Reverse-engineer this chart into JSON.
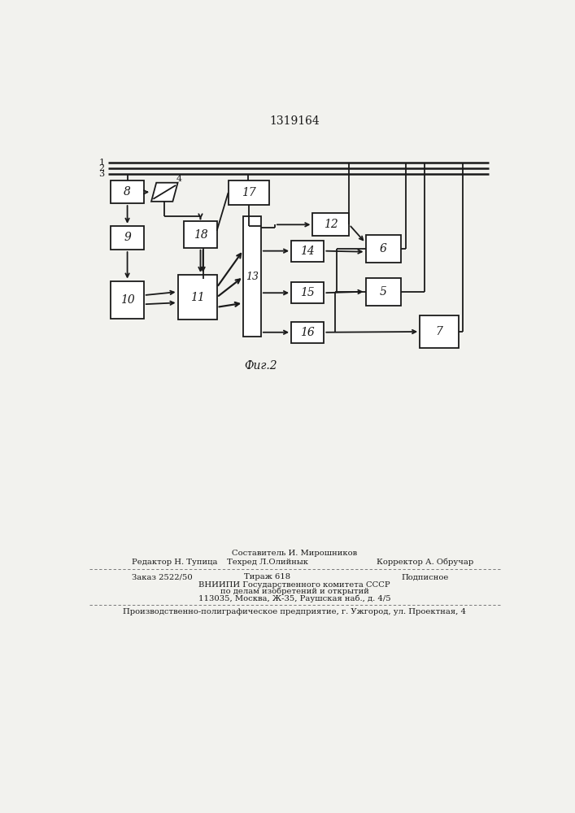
{
  "title": "1319164",
  "fig_label": "Фиг.2",
  "background_color": "#f2f2ee",
  "line_color": "#1a1a1a",
  "box_color": "#ffffff",
  "footer_composer": "Составитель И. Мирошников",
  "footer_editor": "Редактор Н. Тупица",
  "footer_tech": "Техред Л.Олийнык",
  "footer_corrector": "Корректор А. Обручар",
  "footer_order": "Заказ 2522/50",
  "footer_tirazh": "Тираж 618",
  "footer_podp": "Подписное",
  "footer_vniip": "ВНИИПИ Государственного комитета СССР",
  "footer_dela": "по делам изобретений и открытий",
  "footer_addr": "113035, Москва, Ж-35, Раушская наб., д. 4/5",
  "footer_prod": "Производственно-полиграфическое предприятие, г. Ужгород, ул. Проектная, 4"
}
